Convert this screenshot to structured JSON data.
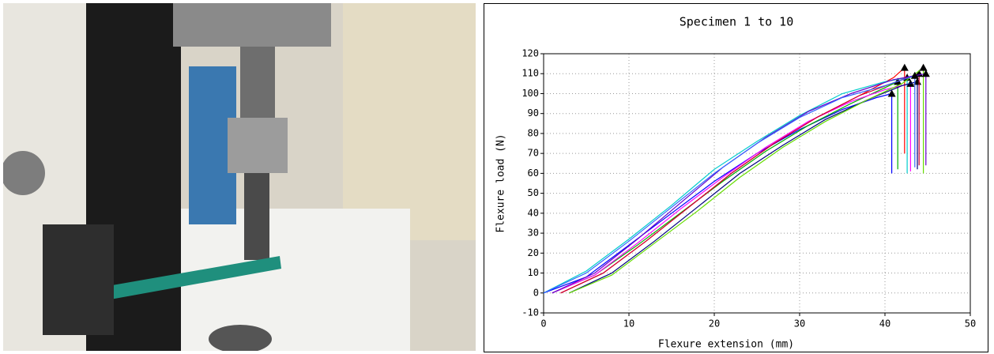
{
  "chart_data": {
    "type": "line",
    "title": "Specimen 1 to 10",
    "xlabel": "Flexure extension (mm)",
    "ylabel": "Flexure load (N)",
    "xlim": [
      0,
      50
    ],
    "xticks": [
      0,
      10,
      20,
      30,
      40,
      50
    ],
    "ylim": [
      -10,
      120
    ],
    "yticks": [
      -10,
      0,
      10,
      20,
      30,
      40,
      50,
      60,
      70,
      80,
      90,
      100,
      110,
      120
    ],
    "grid": true,
    "series": [
      {
        "color": "#0000ff",
        "x": [
          0,
          5,
          10,
          15,
          20,
          25,
          30,
          35,
          39,
          40.8,
          40.8
        ],
        "values": [
          0,
          8,
          24,
          40,
          56,
          70,
          82,
          92,
          98,
          100,
          60
        ]
      },
      {
        "color": "#00b000",
        "x": [
          1,
          6,
          11,
          16,
          21,
          26,
          31,
          36,
          40,
          41.5,
          41.5
        ],
        "values": [
          0,
          9,
          24,
          40,
          56,
          71,
          84,
          95,
          103,
          106,
          62
        ]
      },
      {
        "color": "#ff0000",
        "x": [
          2,
          7,
          12,
          17,
          22,
          27,
          32,
          37,
          41,
          42.3,
          42.3
        ],
        "values": [
          0,
          10,
          26,
          43,
          60,
          75,
          88,
          99,
          108,
          113,
          70
        ]
      },
      {
        "color": "#00cccc",
        "x": [
          0,
          5,
          10,
          15,
          20,
          25,
          30,
          35,
          40,
          42.6,
          42.6
        ],
        "values": [
          0,
          11,
          27,
          44,
          62,
          76,
          89,
          100,
          106,
          108,
          60
        ]
      },
      {
        "color": "#ff00ff",
        "x": [
          1,
          6,
          11,
          16,
          21,
          26,
          31,
          36,
          40,
          43,
          43
        ],
        "values": [
          0,
          9,
          25,
          42,
          58,
          73,
          86,
          96,
          102,
          105,
          61
        ]
      },
      {
        "color": "#000080",
        "x": [
          3,
          8,
          13,
          18,
          23,
          28,
          33,
          38,
          42,
          43.8,
          43.8
        ],
        "values": [
          0,
          10,
          26,
          43,
          60,
          74,
          87,
          97,
          104,
          106,
          62
        ]
      },
      {
        "color": "#cc0033",
        "x": [
          2,
          7,
          12,
          17,
          22,
          27,
          32,
          37,
          42,
          44,
          44
        ],
        "values": [
          0,
          10,
          26,
          43,
          60,
          75,
          88,
          99,
          107,
          110,
          64
        ]
      },
      {
        "color": "#66dd00",
        "x": [
          3,
          8,
          13,
          18,
          23,
          28,
          33,
          38,
          42,
          44.5,
          44.5
        ],
        "values": [
          0,
          9,
          25,
          41,
          58,
          73,
          86,
          97,
          105,
          113,
          60
        ]
      },
      {
        "color": "#6600cc",
        "x": [
          1,
          6,
          11,
          16,
          21,
          26,
          31,
          36,
          41,
          44.8,
          44.8
        ],
        "values": [
          0,
          10,
          27,
          45,
          63,
          78,
          91,
          100,
          107,
          110,
          64
        ]
      },
      {
        "color": "#3366ff",
        "x": [
          0,
          5,
          10,
          15,
          20,
          25,
          30,
          35,
          40,
          43.5,
          43.5
        ],
        "values": [
          0,
          10,
          26,
          43,
          60,
          75,
          88,
          98,
          104,
          109,
          63
        ]
      }
    ]
  }
}
